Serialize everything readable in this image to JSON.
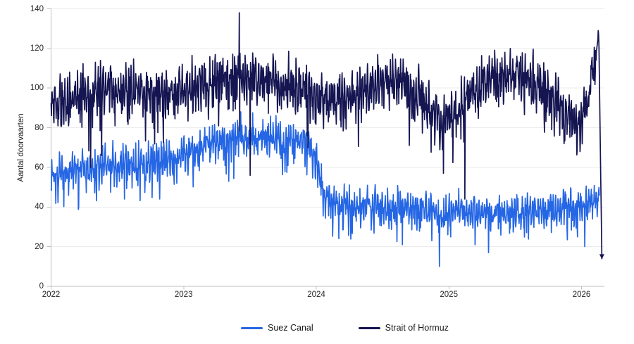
{
  "chart_data": {
    "type": "line",
    "title": "",
    "xlabel": "",
    "ylabel": "Aantal doorvaarten",
    "ylim": [
      0,
      140
    ],
    "x_range": [
      2022,
      2026.16
    ],
    "yticks": [
      0,
      20,
      40,
      60,
      80,
      100,
      120,
      140
    ],
    "xticks": [
      "2022",
      "2023",
      "2024",
      "2025",
      "2026"
    ],
    "grid": "horizontal",
    "legend_position": "bottom-center",
    "sampling": "daily",
    "colors": {
      "grid": "#ebebeb",
      "axis": "#c1c1c1",
      "tick_text": "#262626"
    },
    "series": [
      {
        "name": "Suez Canal",
        "color": "#2566e4",
        "noise_amp": 9,
        "seed": 12,
        "anchors": [
          [
            2022.0,
            57
          ],
          [
            2022.2,
            59
          ],
          [
            2022.45,
            61
          ],
          [
            2022.7,
            62
          ],
          [
            2022.95,
            65
          ],
          [
            2023.15,
            71
          ],
          [
            2023.4,
            76
          ],
          [
            2023.6,
            76
          ],
          [
            2023.8,
            74
          ],
          [
            2023.94,
            73
          ],
          [
            2023.99,
            64
          ],
          [
            2024.04,
            50
          ],
          [
            2024.12,
            42
          ],
          [
            2024.3,
            41
          ],
          [
            2024.6,
            40
          ],
          [
            2024.9,
            38
          ],
          [
            2025.2,
            38
          ],
          [
            2025.5,
            37
          ],
          [
            2025.75,
            38
          ],
          [
            2025.95,
            40
          ],
          [
            2026.135,
            43
          ]
        ],
        "spikes": [
          [
            2023.43,
            88
          ],
          [
            2024.65,
            21
          ],
          [
            2024.93,
            10
          ],
          [
            2025.3,
            17
          ],
          [
            2025.97,
            25
          ]
        ]
      },
      {
        "name": "Strait of Hormuz",
        "color": "#151552",
        "noise_amp": 13,
        "seed": 5,
        "clean_tail_from": 2026.112,
        "end_marker": "arrow-down",
        "anchors": [
          [
            2022.0,
            92
          ],
          [
            2022.2,
            97
          ],
          [
            2022.5,
            100
          ],
          [
            2022.8,
            99
          ],
          [
            2023.0,
            98
          ],
          [
            2023.25,
            103
          ],
          [
            2023.45,
            107
          ],
          [
            2023.65,
            104
          ],
          [
            2023.85,
            100
          ],
          [
            2024.05,
            96
          ],
          [
            2024.2,
            93
          ],
          [
            2024.4,
            101
          ],
          [
            2024.6,
            104
          ],
          [
            2024.8,
            95
          ],
          [
            2024.93,
            82
          ],
          [
            2025.05,
            90
          ],
          [
            2025.2,
            100
          ],
          [
            2025.4,
            108
          ],
          [
            2025.6,
            106
          ],
          [
            2025.75,
            100
          ],
          [
            2025.9,
            85
          ],
          [
            2025.97,
            80
          ],
          [
            2026.05,
            93
          ],
          [
            2026.1,
            112
          ],
          [
            2026.13,
            128
          ],
          [
            2026.155,
            6
          ]
        ],
        "spikes": [
          [
            2022.3,
            60
          ],
          [
            2023.42,
            138
          ],
          [
            2023.5,
            56
          ],
          [
            2024.96,
            57
          ],
          [
            2025.12,
            44
          ],
          [
            2026.125,
            129
          ]
        ]
      }
    ]
  }
}
